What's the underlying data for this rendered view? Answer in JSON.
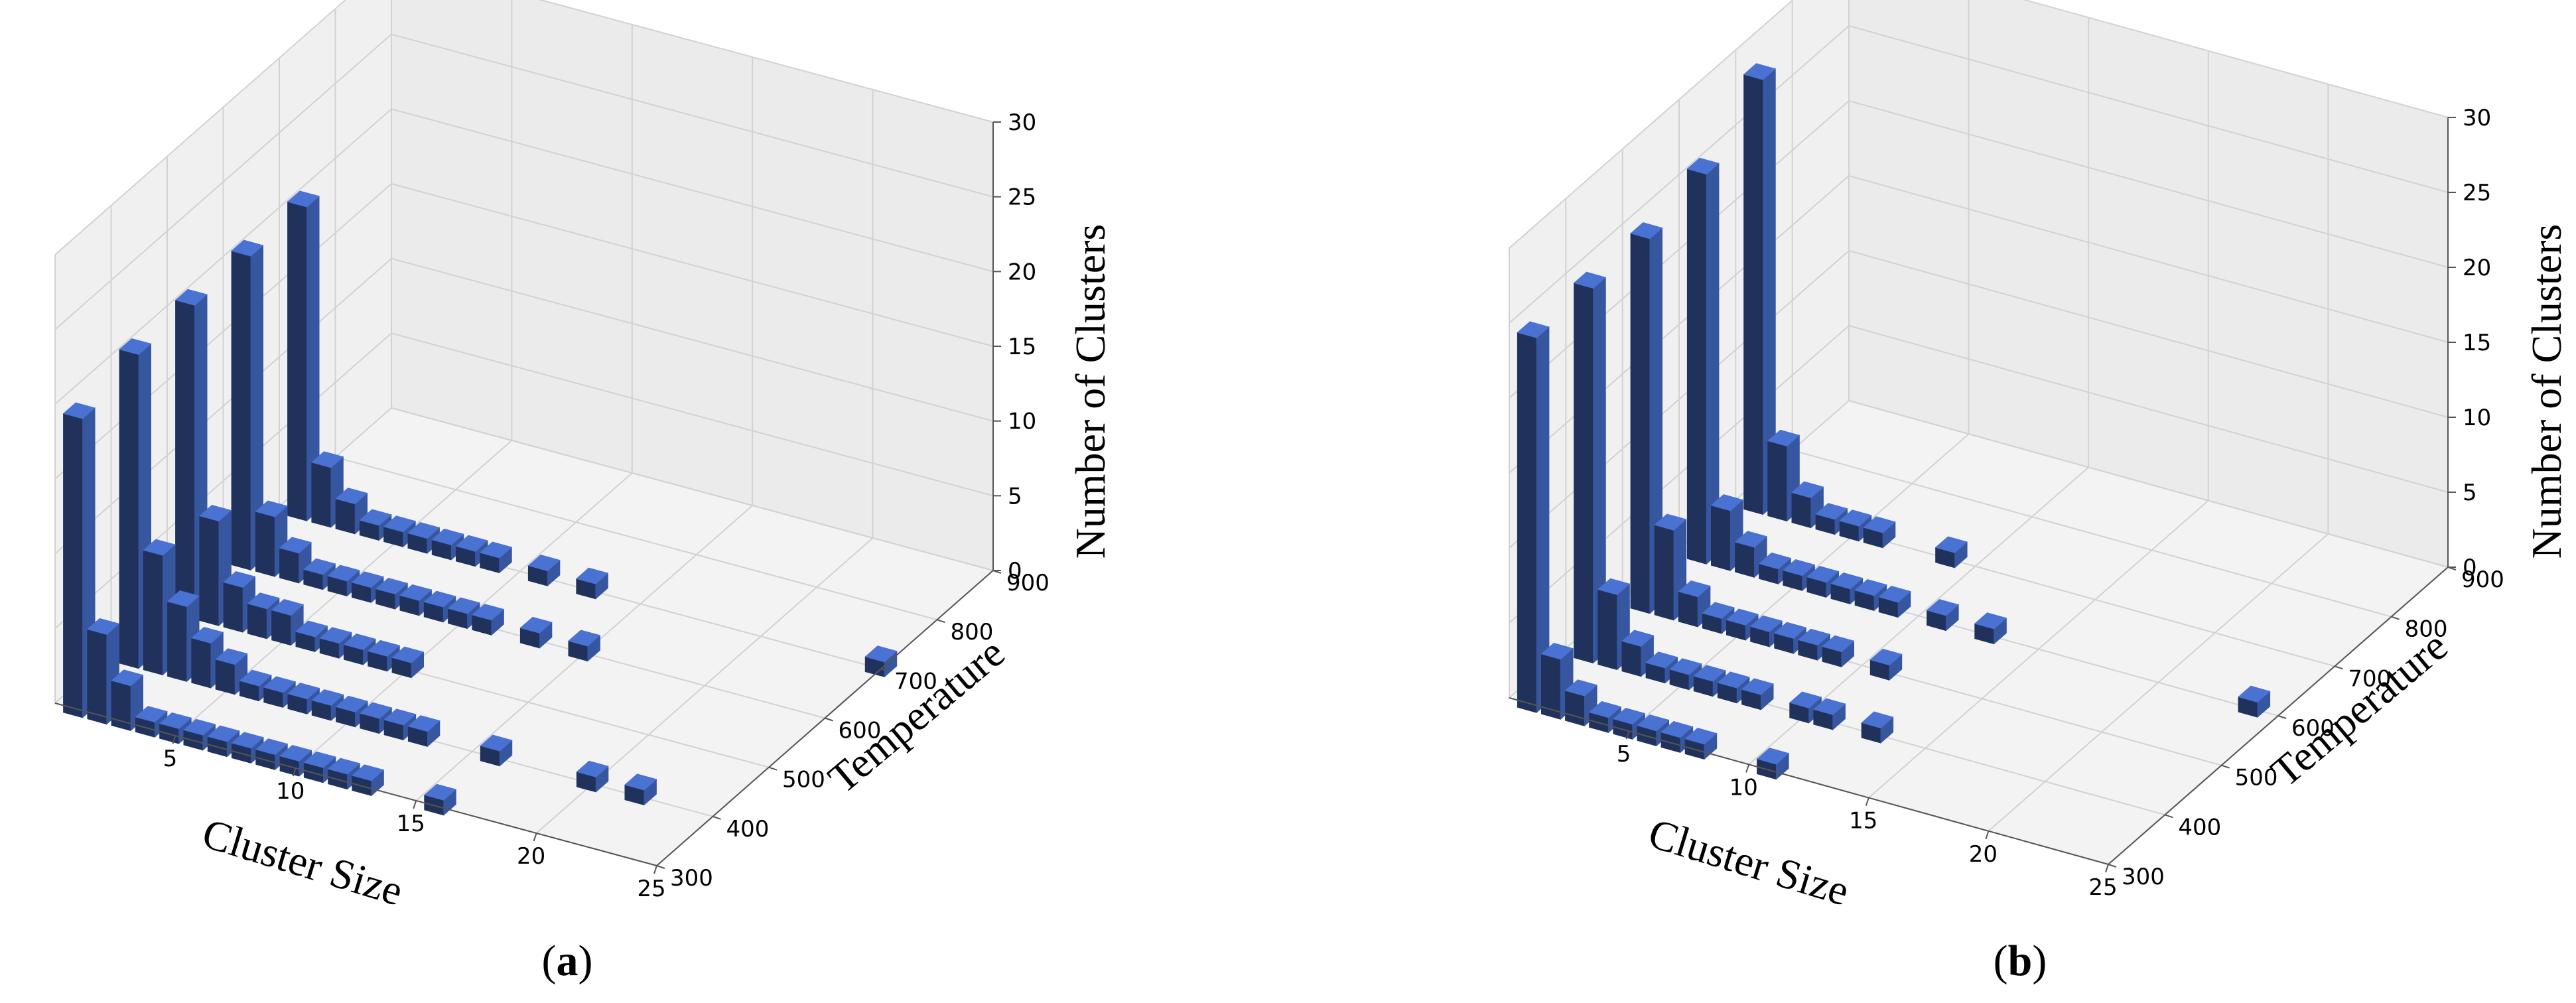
{
  "figure": {
    "panels": [
      "a",
      "b"
    ]
  },
  "chart_data": [
    {
      "type": "bar3d",
      "panel_label": "a",
      "xlabel": "Cluster Size",
      "ylabel": "Temperature",
      "zlabel": "Number of Clusters",
      "xticks": [
        "5",
        "10",
        "15",
        "20",
        "25"
      ],
      "yticks": [
        "300",
        "400",
        "500",
        "600",
        "700",
        "800",
        "900"
      ],
      "zticks": [
        "0",
        "5",
        "10",
        "15",
        "20",
        "25",
        "30"
      ],
      "xlim": [
        0,
        25
      ],
      "ylim": [
        300,
        900
      ],
      "zlim": [
        0,
        30
      ],
      "bar_color": "#3a5ba8",
      "series": [
        {
          "temperature": 300,
          "points": [
            [
              1,
              20
            ],
            [
              2,
              6
            ],
            [
              3,
              3
            ],
            [
              4,
              1
            ],
            [
              5,
              1
            ],
            [
              6,
              1
            ],
            [
              7,
              1
            ],
            [
              8,
              1
            ],
            [
              9,
              1
            ],
            [
              10,
              1
            ],
            [
              11,
              1
            ],
            [
              12,
              1
            ],
            [
              13,
              1
            ],
            [
              16,
              1
            ]
          ]
        },
        {
          "temperature": 400,
          "points": [
            [
              1,
              21
            ],
            [
              2,
              8
            ],
            [
              3,
              5
            ],
            [
              4,
              3
            ],
            [
              5,
              2
            ],
            [
              6,
              1
            ],
            [
              7,
              1
            ],
            [
              8,
              1
            ],
            [
              9,
              1
            ],
            [
              10,
              1
            ],
            [
              11,
              1
            ],
            [
              12,
              1
            ],
            [
              13,
              1
            ],
            [
              16,
              1
            ],
            [
              20,
              1
            ],
            [
              22,
              1
            ]
          ]
        },
        {
          "temperature": 500,
          "points": [
            [
              1,
              21
            ],
            [
              2,
              7
            ],
            [
              3,
              3
            ],
            [
              4,
              2
            ],
            [
              5,
              2
            ],
            [
              6,
              1
            ],
            [
              7,
              1
            ],
            [
              8,
              1
            ],
            [
              9,
              1
            ],
            [
              10,
              1
            ]
          ]
        },
        {
          "temperature": 600,
          "points": [
            [
              1,
              21
            ],
            [
              2,
              4
            ],
            [
              3,
              2
            ],
            [
              4,
              1
            ],
            [
              5,
              1
            ],
            [
              6,
              1
            ],
            [
              7,
              1
            ],
            [
              8,
              1
            ],
            [
              9,
              1
            ],
            [
              10,
              1
            ],
            [
              11,
              1
            ],
            [
              13,
              1
            ],
            [
              15,
              1
            ]
          ]
        },
        {
          "temperature": 700,
          "points": [
            [
              1,
              21
            ],
            [
              2,
              4
            ],
            [
              3,
              2
            ],
            [
              4,
              1
            ],
            [
              5,
              1
            ],
            [
              6,
              1
            ],
            [
              7,
              1
            ],
            [
              8,
              1
            ],
            [
              9,
              1
            ],
            [
              11,
              1
            ],
            [
              13,
              1
            ],
            [
              25,
              1
            ]
          ]
        }
      ]
    },
    {
      "type": "bar3d",
      "panel_label": "b",
      "xlabel": "Cluster Size",
      "ylabel": "Temperature",
      "zlabel": "Number of Clusters",
      "xticks": [
        "5",
        "10",
        "15",
        "20",
        "25"
      ],
      "yticks": [
        "300",
        "400",
        "500",
        "600",
        "700",
        "800",
        "900"
      ],
      "zticks": [
        "0",
        "5",
        "10",
        "15",
        "20",
        "25",
        "30"
      ],
      "xlim": [
        0,
        25
      ],
      "ylim": [
        300,
        900
      ],
      "zlim": [
        0,
        30
      ],
      "bar_color": "#3a5ba8",
      "series": [
        {
          "temperature": 300,
          "points": [
            [
              1,
              25
            ],
            [
              2,
              4
            ],
            [
              3,
              2
            ],
            [
              4,
              1
            ],
            [
              5,
              1
            ],
            [
              6,
              1
            ],
            [
              7,
              1
            ],
            [
              8,
              1
            ],
            [
              11,
              1
            ]
          ]
        },
        {
          "temperature": 400,
          "points": [
            [
              1,
              25
            ],
            [
              2,
              5
            ],
            [
              3,
              2
            ],
            [
              4,
              1
            ],
            [
              5,
              1
            ],
            [
              6,
              1
            ],
            [
              7,
              1
            ],
            [
              8,
              1
            ],
            [
              10,
              1
            ],
            [
              11,
              1
            ],
            [
              13,
              1
            ]
          ]
        },
        {
          "temperature": 500,
          "points": [
            [
              1,
              25
            ],
            [
              2,
              6
            ],
            [
              3,
              2
            ],
            [
              4,
              1
            ],
            [
              5,
              1
            ],
            [
              6,
              1
            ],
            [
              7,
              1
            ],
            [
              8,
              1
            ],
            [
              9,
              1
            ],
            [
              11,
              1
            ]
          ]
        },
        {
          "temperature": 600,
          "points": [
            [
              1,
              26
            ],
            [
              2,
              4
            ],
            [
              3,
              2
            ],
            [
              4,
              1
            ],
            [
              5,
              1
            ],
            [
              6,
              1
            ],
            [
              7,
              1
            ],
            [
              8,
              1
            ],
            [
              9,
              1
            ],
            [
              11,
              1
            ],
            [
              13,
              1
            ],
            [
              24,
              1
            ]
          ]
        },
        {
          "temperature": 700,
          "points": [
            [
              1,
              29
            ],
            [
              2,
              5
            ],
            [
              3,
              2
            ],
            [
              4,
              1
            ],
            [
              5,
              1
            ],
            [
              6,
              1
            ],
            [
              9,
              1
            ]
          ]
        }
      ]
    }
  ]
}
